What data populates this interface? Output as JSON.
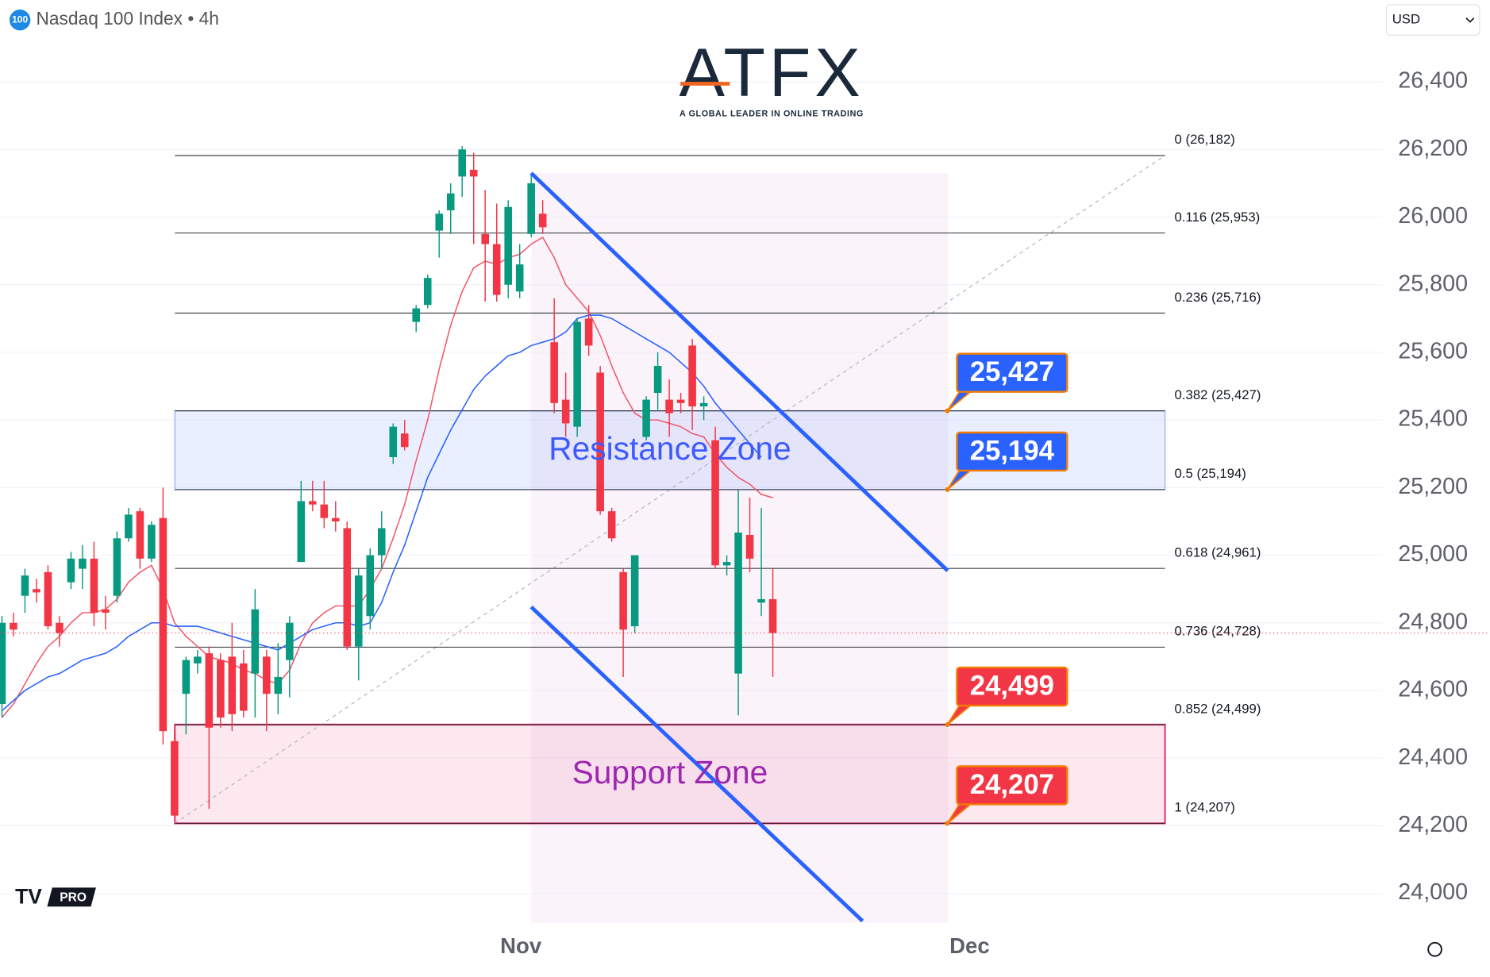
{
  "chart_data": {
    "type": "candlestick",
    "title": "Nasdaq 100 Index • 4h",
    "symbol_badge": "100",
    "currency": "USD",
    "x": [
      0,
      1,
      2,
      3,
      4,
      5,
      6,
      7,
      8,
      9,
      10,
      11,
      12,
      13,
      14,
      15,
      16,
      17,
      18,
      19,
      20,
      21,
      22,
      23,
      24,
      25,
      26,
      27,
      28,
      29,
      30,
      31,
      32,
      33,
      34,
      35,
      36,
      37,
      38,
      39,
      40,
      41,
      42,
      43,
      44,
      45,
      46,
      47,
      48,
      49,
      50,
      51,
      52,
      53,
      54,
      55,
      56,
      57,
      58,
      59,
      60,
      61,
      62,
      63,
      64,
      65,
      66,
      67
    ],
    "candles": {
      "open": [
        24560,
        24800,
        24880,
        24900,
        24950,
        24800,
        24920,
        24960,
        24990,
        24840,
        24880,
        25050,
        25130,
        24990,
        25110,
        24450,
        24590,
        24680,
        24710,
        24690,
        24700,
        24680,
        24650,
        24700,
        24590,
        24690,
        24980,
        25160,
        25150,
        25110,
        25080,
        24730,
        24820,
        25000,
        25290,
        25360,
        25690,
        25740,
        25960,
        26020,
        26120,
        26140,
        25950,
        25920,
        25800,
        25780,
        25950,
        26010,
        25630,
        25460,
        25380,
        25700,
        25540,
        25130,
        24950,
        24790,
        25350,
        25480,
        25460,
        25460,
        25620,
        25440,
        25340,
        24970,
        24650,
        25060,
        24860,
        24870
      ],
      "high": [
        24820,
        24830,
        24960,
        24930,
        24970,
        24820,
        25010,
        25030,
        25040,
        24880,
        25070,
        25140,
        25140,
        25100,
        25200,
        24480,
        24700,
        24720,
        24730,
        24710,
        24800,
        24720,
        24900,
        24720,
        24740,
        24820,
        25220,
        25220,
        25220,
        25160,
        25100,
        24960,
        25020,
        25130,
        25390,
        25400,
        25740,
        25830,
        26020,
        26100,
        26210,
        26190,
        26080,
        26040,
        26050,
        25920,
        26130,
        26050,
        25760,
        25540,
        25700,
        25740,
        25560,
        25140,
        24960,
        25000,
        25470,
        25600,
        25520,
        25480,
        25640,
        25470,
        25380,
        25000,
        25192,
        25170,
        25140,
        24960
      ],
      "low": [
        24520,
        24760,
        24830,
        24860,
        24780,
        24730,
        24900,
        24900,
        24790,
        24780,
        24860,
        25040,
        24960,
        24980,
        24440,
        24230,
        24470,
        24650,
        24250,
        24490,
        24480,
        24520,
        24520,
        24480,
        24530,
        24580,
        24980,
        25130,
        25080,
        25070,
        24720,
        24630,
        24780,
        24960,
        25270,
        25310,
        25660,
        25730,
        25880,
        25950,
        26060,
        25920,
        25750,
        25750,
        25760,
        25760,
        25940,
        25950,
        25420,
        25350,
        25350,
        25590,
        25120,
        25040,
        24640,
        24770,
        25340,
        25430,
        25350,
        25420,
        25370,
        25400,
        24960,
        24940,
        24527,
        24950,
        24820,
        24640
      ],
      "close": [
        24800,
        24780,
        24940,
        24890,
        24790,
        24770,
        24990,
        24990,
        24830,
        24830,
        25050,
        25120,
        24990,
        25090,
        24480,
        24230,
        24690,
        24700,
        24490,
        24520,
        24530,
        24540,
        24840,
        24590,
        24640,
        24800,
        25160,
        25150,
        25110,
        25100,
        24730,
        24940,
        25000,
        25080,
        25380,
        25320,
        25730,
        25820,
        26010,
        26070,
        26200,
        26120,
        25920,
        25770,
        26030,
        25860,
        26100,
        25970,
        25450,
        25390,
        25690,
        25620,
        25130,
        25050,
        24780,
        25000,
        25460,
        25560,
        25420,
        25450,
        25440,
        25450,
        24970,
        24980,
        25067,
        24990,
        24870,
        24770
      ]
    },
    "up_color": "#089981",
    "down_color": "#f23645",
    "overlays": [
      {
        "color": "#f05a6b",
        "values": [
          24520,
          24560,
          24620,
          24680,
          24730,
          24760,
          24800,
          24830,
          24830,
          24840,
          24870,
          24920,
          24950,
          24970,
          24900,
          24800,
          24760,
          24730,
          24700,
          24690,
          24680,
          24660,
          24650,
          24630,
          24620,
          24660,
          24740,
          24800,
          24830,
          24850,
          24850,
          24850,
          24900,
          24960,
          25050,
          25150,
          25280,
          25400,
          25550,
          25680,
          25780,
          25850,
          25870,
          25860,
          25880,
          25890,
          25920,
          25940,
          25880,
          25800,
          25760,
          25720,
          25650,
          25560,
          25480,
          25420,
          25400,
          25400,
          25390,
          25380,
          25360,
          25350,
          25300,
          25260,
          25230,
          25210,
          25180,
          25170
        ]
      },
      {
        "color": "#2962ff",
        "values": [
          24540,
          24570,
          24600,
          24620,
          24640,
          24650,
          24670,
          24690,
          24700,
          24710,
          24730,
          24760,
          24780,
          24800,
          24800,
          24790,
          24790,
          24790,
          24780,
          24770,
          24760,
          24750,
          24740,
          24730,
          24720,
          24740,
          24760,
          24780,
          24790,
          24800,
          24800,
          24790,
          24800,
          24860,
          24950,
          25030,
          25130,
          25230,
          25300,
          25370,
          25430,
          25490,
          25530,
          25560,
          25590,
          25600,
          25620,
          25630,
          25640,
          25660,
          25700,
          25710,
          25710,
          25700,
          25680,
          25660,
          25640,
          25620,
          25600,
          25570,
          25540,
          25500,
          25450,
          25410,
          25370,
          25330,
          25290,
          null
        ]
      }
    ],
    "fib_levels": [
      {
        "label": "0 (26,182)",
        "value": 26182
      },
      {
        "label": "0.116 (25,953)",
        "value": 25953
      },
      {
        "label": "0.236 (25,716)",
        "value": 25716
      },
      {
        "label": "0.382 (25,427)",
        "value": 25427
      },
      {
        "label": "0.5 (25,194)",
        "value": 25194
      },
      {
        "label": "0.618 (24,961)",
        "value": 24961
      },
      {
        "label": "0.736 (24,728)",
        "value": 24728
      },
      {
        "label": "0.852 (24,499)",
        "value": 24499
      },
      {
        "label": "1 (24,207)",
        "value": 24207
      }
    ],
    "zones": [
      {
        "label": "Resistance Zone",
        "range": [
          25194,
          25427
        ],
        "color": "#2962ff",
        "text_color": "#3d5afe"
      },
      {
        "label": "Support Zone",
        "range": [
          24207,
          24499
        ],
        "color": "#e91e63",
        "text_color": "#9c27b0"
      }
    ],
    "callouts": [
      {
        "value": 25427,
        "label": "25,427",
        "color": "#2962ff"
      },
      {
        "value": 25194,
        "label": "25,194",
        "color": "#2962ff"
      },
      {
        "value": 24499,
        "label": "24,499",
        "color": "#f23645"
      },
      {
        "value": 24207,
        "label": "24,207",
        "color": "#f23645"
      }
    ],
    "trendlines": [
      {
        "color": "#2962ff",
        "x": [
          46,
          82.2
        ],
        "values": [
          26130,
          24954
        ]
      },
      {
        "color": "#2962ff",
        "x": [
          46,
          74.8
        ],
        "values": [
          24847,
          23918
        ]
      }
    ],
    "xlim": [
      -0.17,
      120
    ],
    "xticks": [
      {
        "value": 45.1,
        "label": "Nov"
      },
      {
        "value": 84.1,
        "label": "Dec"
      }
    ],
    "ylim": [
      23913,
      26642
    ],
    "yticks": [
      {
        "value": 24000,
        "label": "24,000"
      },
      {
        "value": 24200,
        "label": "24,200"
      },
      {
        "value": 24400,
        "label": "24,400"
      },
      {
        "value": 24600,
        "label": "24,600"
      },
      {
        "value": 24800,
        "label": "24,800"
      },
      {
        "value": 25000,
        "label": "25,000"
      },
      {
        "value": 25200,
        "label": "25,200"
      },
      {
        "value": 25400,
        "label": "25,400"
      },
      {
        "value": 25600,
        "label": "25,600"
      },
      {
        "value": 25800,
        "label": "25,800"
      },
      {
        "value": 26000,
        "label": "26,000"
      },
      {
        "value": 26200,
        "label": "26,200"
      },
      {
        "value": 26400,
        "label": "26,400"
      }
    ],
    "grid": true
  },
  "branding": {
    "logo": "ATFX",
    "tagline": "A GLOBAL LEADER IN ONLINE TRADING",
    "platform_badge": "PRO"
  }
}
